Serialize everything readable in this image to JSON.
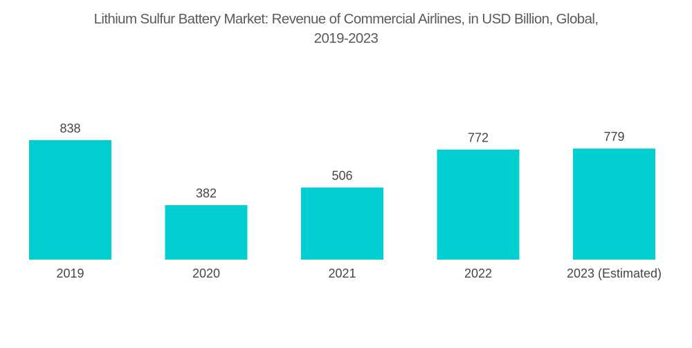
{
  "chart_data": {
    "type": "bar",
    "title_line1": "Lithium Sulfur Battery Market: Revenue of Commercial Airlines, in USD Billion, Global,",
    "title_line2": "2019-2023",
    "categories": [
      "2019",
      "2020",
      "2021",
      "2022",
      "2023 (Estimated)"
    ],
    "values": [
      838,
      382,
      506,
      772,
      779
    ],
    "value_labels": [
      "838",
      "382",
      "506",
      "772",
      "779"
    ],
    "xlabel": "",
    "ylabel": "",
    "ylim": [
      0,
      838
    ],
    "grid": false,
    "legend": "none",
    "bar_color": "#00ced1"
  }
}
